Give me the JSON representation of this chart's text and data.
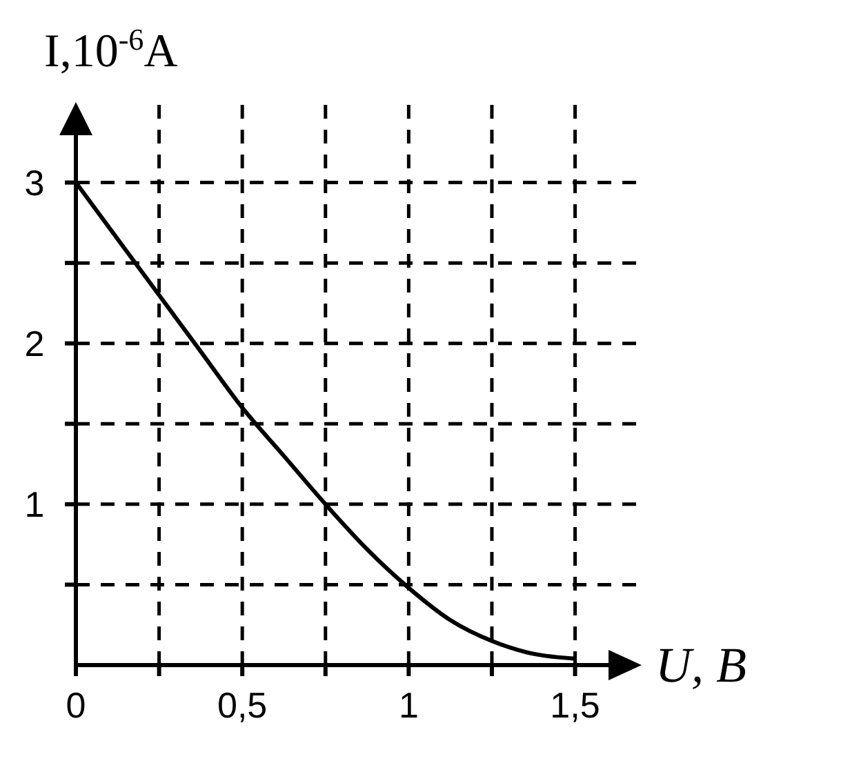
{
  "chart_data": {
    "type": "line",
    "xlabel": "U, B",
    "ylabel": "I,10$^{-6}$A",
    "x": [
      0,
      0.125,
      0.25,
      0.375,
      0.5,
      0.625,
      0.75,
      0.875,
      1,
      1.125,
      1.25,
      1.375,
      1.5
    ],
    "series": [
      {
        "color": "#000000",
        "values": [
          3,
          2.65,
          2.3,
          1.95,
          1.6,
          1.3,
          1,
          0.72,
          0.48,
          0.28,
          0.15,
          0.07,
          0.04
        ]
      }
    ],
    "xlim": [
      0,
      1.7
    ],
    "ylim": [
      0,
      3.5
    ],
    "xticks": [
      0,
      {
        "value": 0.25,
        "label": null
      },
      {
        "value": 0.5,
        "label": "0,5"
      },
      {
        "value": 0.75,
        "label": null
      },
      1,
      {
        "value": 1.25,
        "label": null
      },
      {
        "value": 1.5,
        "label": "1,5"
      }
    ],
    "yticks": [
      {
        "value": 0.5,
        "label": null
      },
      1,
      {
        "value": 1.5,
        "label": null
      },
      2,
      {
        "value": 2.5,
        "label": null
      },
      3
    ],
    "grid": true,
    "line_style": "solid",
    "marker": "none"
  }
}
